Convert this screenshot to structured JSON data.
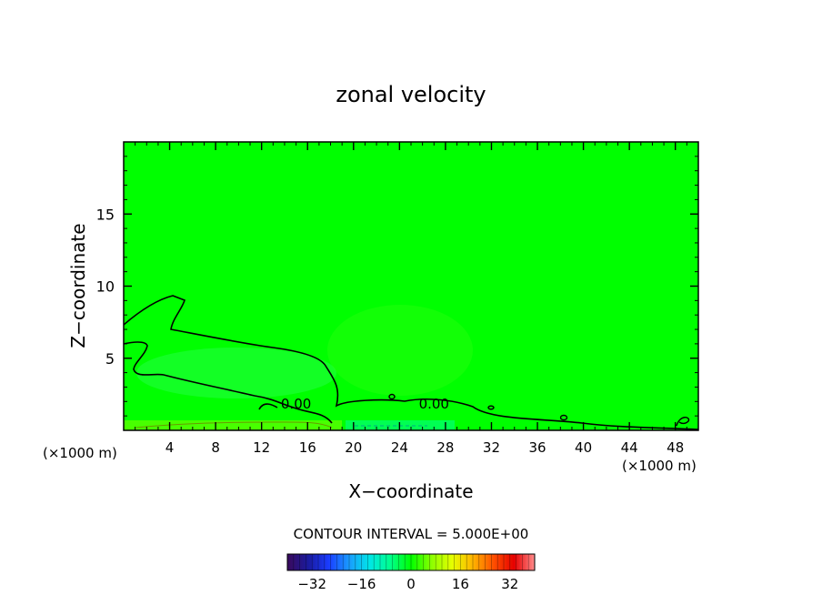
{
  "chart_data": {
    "type": "heatmap",
    "title": "zonal velocity",
    "xlabel": "X−coordinate",
    "ylabel": "Z−coordinate",
    "x_unit_left": "(×1000 m)",
    "x_unit_right": "(×1000 m)",
    "xlim": [
      0,
      50
    ],
    "ylim": [
      0,
      20
    ],
    "x_ticks": [
      4,
      8,
      12,
      16,
      20,
      24,
      28,
      32,
      36,
      40,
      44,
      48
    ],
    "x_tick_labels": [
      "4",
      "8",
      "12",
      "16",
      "20",
      "24",
      "28",
      "32",
      "36",
      "40",
      "44",
      "48"
    ],
    "y_ticks": [
      5,
      10,
      15
    ],
    "y_tick_labels": [
      "5",
      "10",
      "15"
    ],
    "background_color": "#00ff00",
    "contour_line_color": "#000000",
    "contour_labels": [
      {
        "text": "0.00",
        "x": 15.0,
        "z": 1.9
      },
      {
        "text": "0.00",
        "x": 27.0,
        "z": 1.9
      }
    ],
    "contour_interval_text": "CONTOUR INTERVAL =  5.000E+00",
    "colorbar": {
      "min": -40,
      "max": 40,
      "tick_values": [
        -32,
        -16,
        0,
        16,
        32
      ],
      "tick_labels": [
        "−32",
        "−16",
        "0",
        "16",
        "32"
      ],
      "colors": [
        "#3a0a5c",
        "#1a1a9c",
        "#1a3cff",
        "#1a9cff",
        "#00e6e6",
        "#00ff8c",
        "#00ff00",
        "#8cff00",
        "#e6ff00",
        "#ffb400",
        "#ff5000",
        "#e60000",
        "#ff8c8c"
      ]
    }
  }
}
